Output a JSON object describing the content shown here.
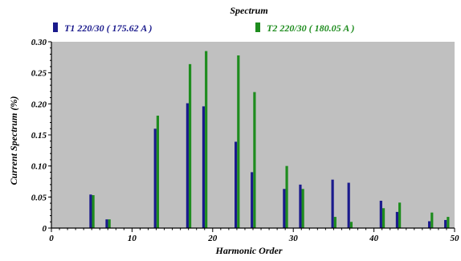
{
  "chart_data": {
    "type": "bar",
    "title": "Spectrum",
    "xlabel": "Harmonic Order",
    "ylabel": "Current Spectrum (%)",
    "xlim": [
      0,
      50
    ],
    "ylim": [
      0,
      0.3
    ],
    "x_ticks": [
      "0",
      "10",
      "20",
      "30",
      "40",
      "50"
    ],
    "y_ticks": [
      "0",
      "0.05",
      "0.10",
      "0.15",
      "0.20",
      "0.25",
      "0.30"
    ],
    "grid": false,
    "legend_position": "top",
    "background_color": "#c0c0c0",
    "harmonics": [
      5,
      7,
      13,
      17,
      19,
      23,
      25,
      29,
      31,
      35,
      37,
      41,
      43,
      47,
      49
    ],
    "series": [
      {
        "name": "T1 220/30 ( 175.62 A )",
        "color": "#1a1a8c",
        "values": [
          0.054,
          0.014,
          0.16,
          0.201,
          0.196,
          0.139,
          0.09,
          0.063,
          0.07,
          0.078,
          0.073,
          0.044,
          0.026,
          0.011,
          0.013
        ]
      },
      {
        "name": "T2 220/30 ( 180.05 A )",
        "color": "#1e8c1e",
        "values": [
          0.053,
          0.014,
          0.181,
          0.264,
          0.285,
          0.278,
          0.219,
          0.1,
          0.063,
          0.018,
          0.01,
          0.032,
          0.041,
          0.025,
          0.018
        ]
      }
    ]
  }
}
